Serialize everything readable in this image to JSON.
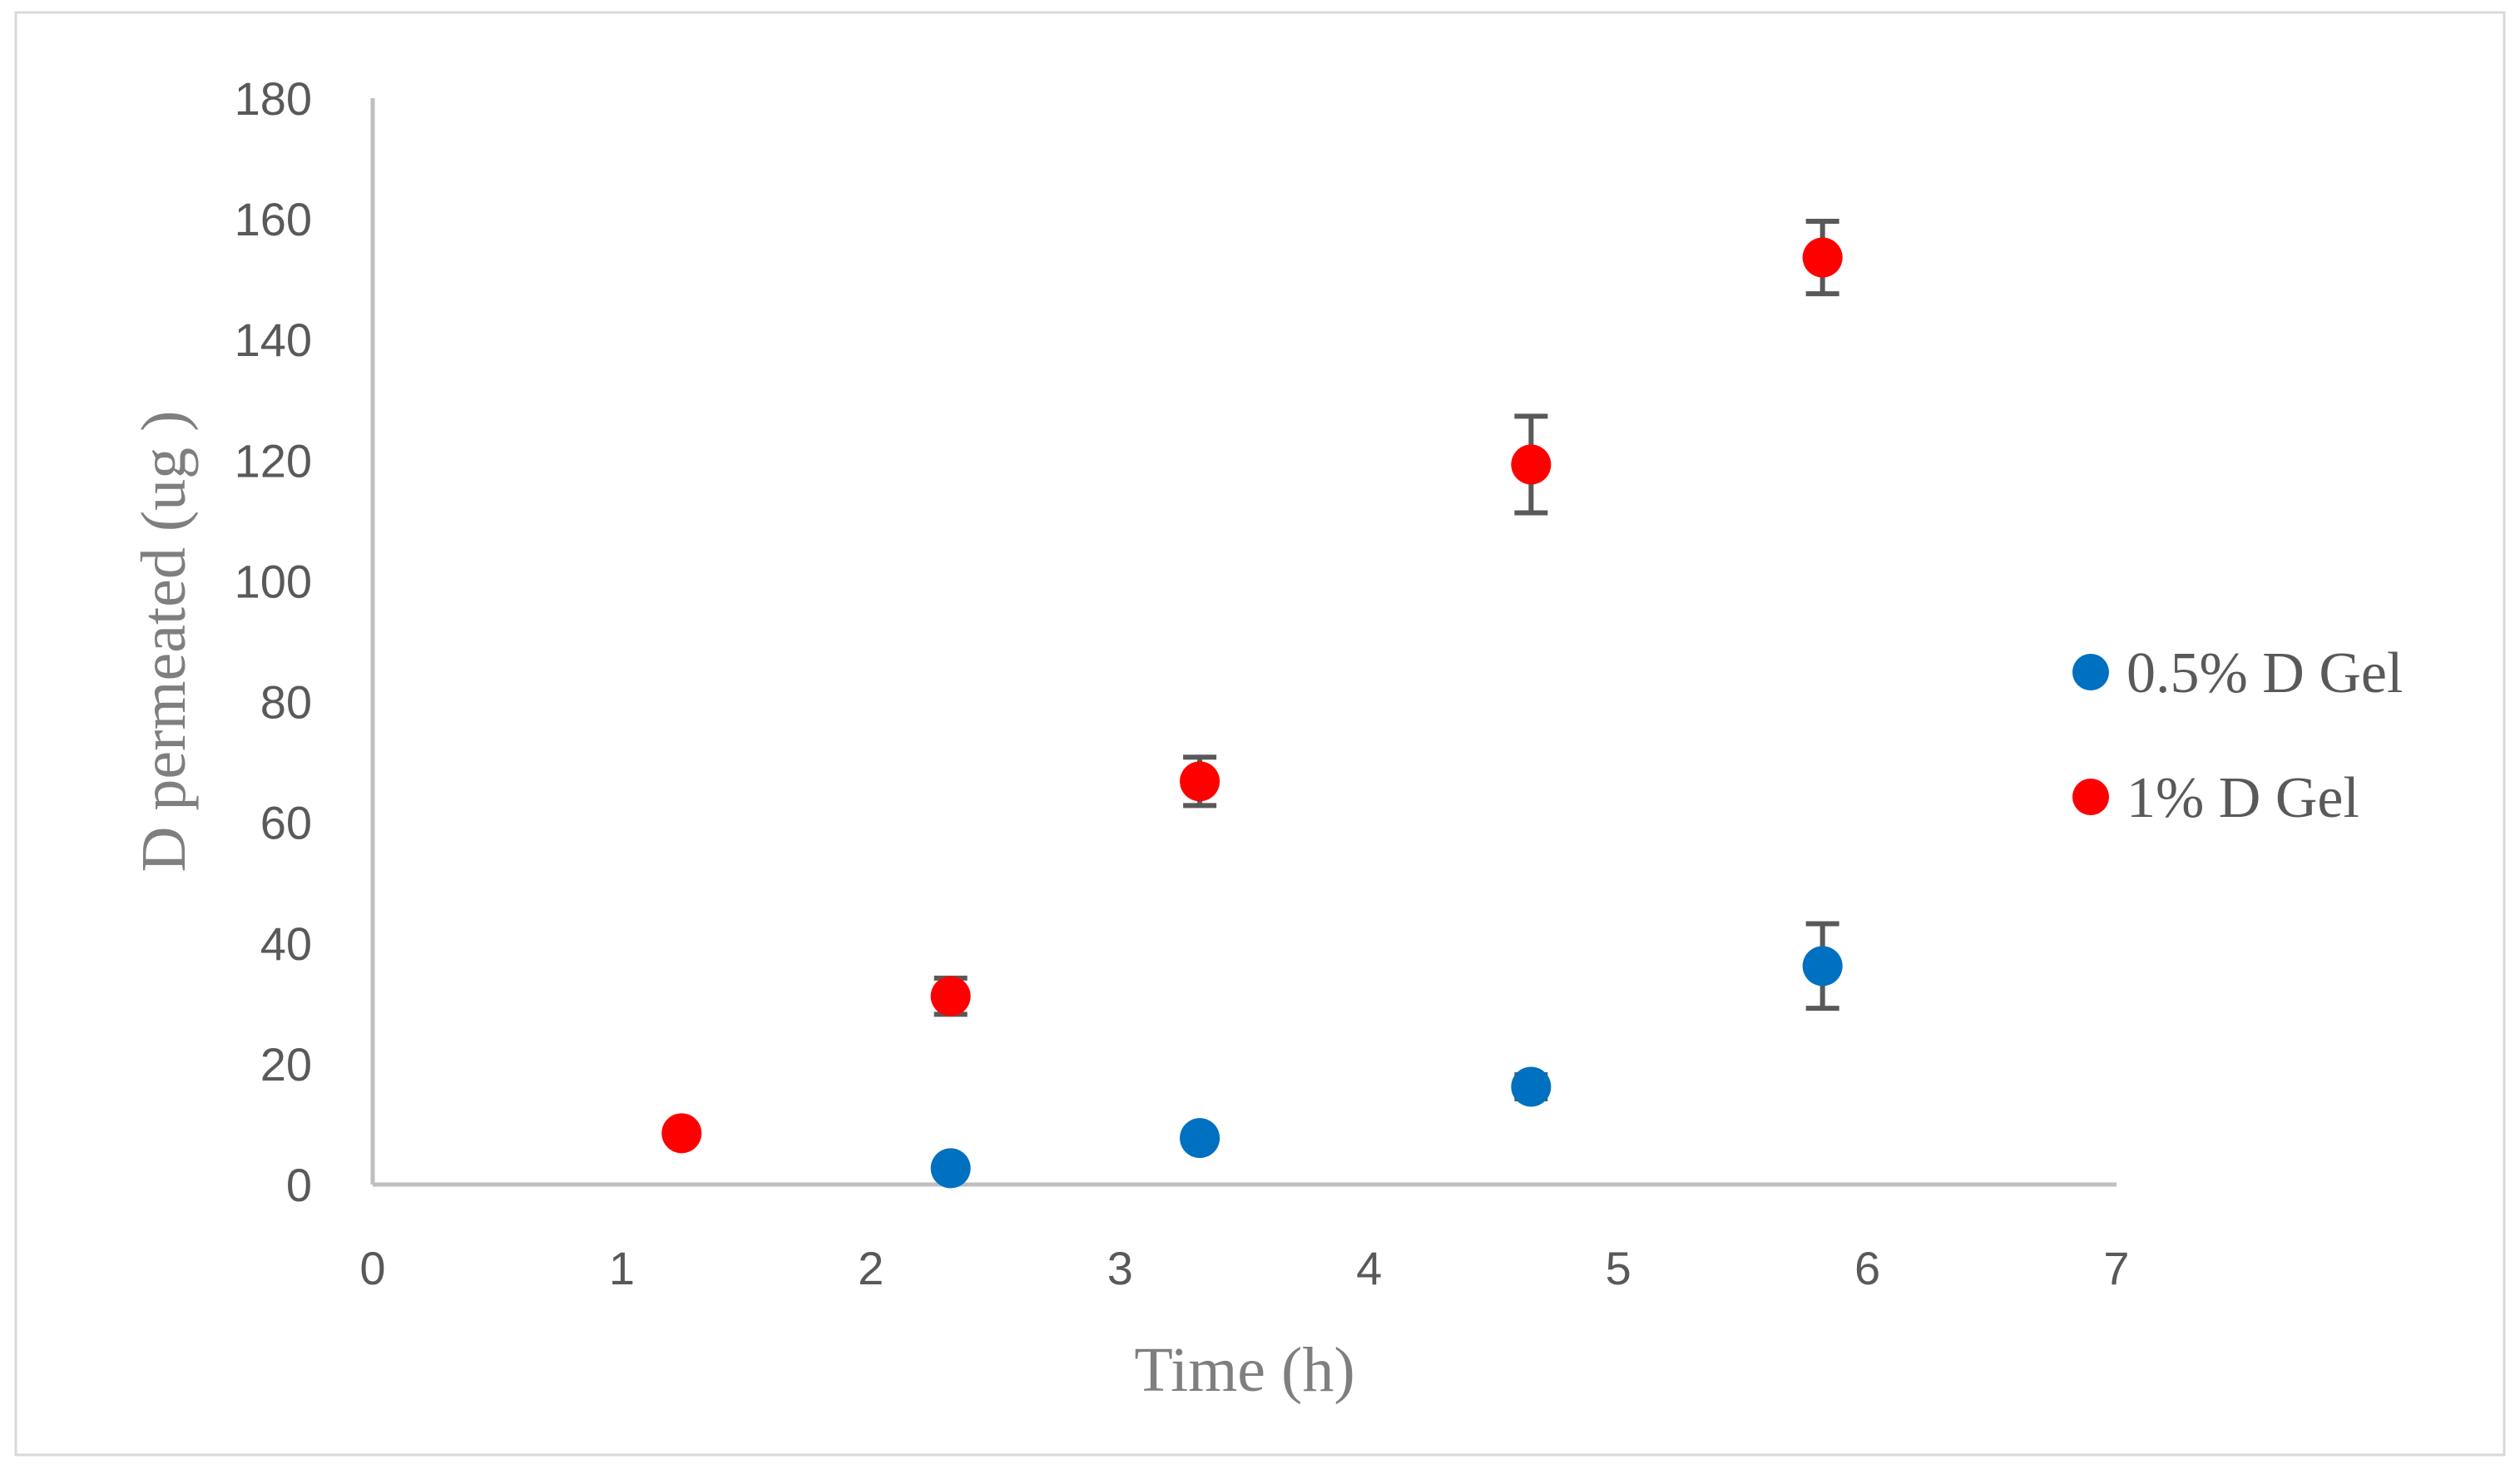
{
  "chart_data": {
    "type": "scatter",
    "xlabel": "Time (h)",
    "ylabel": "D permeated (ug )",
    "xlim": [
      0,
      7
    ],
    "ylim": [
      0,
      180
    ],
    "xticks": [
      0,
      1,
      2,
      3,
      4,
      5,
      6,
      7
    ],
    "yticks": [
      0,
      20,
      40,
      60,
      80,
      100,
      120,
      140,
      160,
      180
    ],
    "grid": false,
    "legend_position": "right",
    "series": [
      {
        "name": "0.5% D Gel",
        "color": "#0070C0",
        "x": [
          2.32,
          3.32,
          4.65,
          5.82
        ],
        "y": [
          2.7,
          7.7,
          16.2,
          36.2
        ],
        "error": [
          1,
          1,
          2,
          7
        ]
      },
      {
        "name": "1% D Gel",
        "color": "#FF0000",
        "x": [
          1.24,
          2.32,
          3.32,
          4.65,
          5.82
        ],
        "y": [
          8.5,
          31.2,
          66.8,
          119.3,
          153.6
        ],
        "error": [
          0,
          3,
          4,
          8,
          6
        ]
      }
    ]
  }
}
